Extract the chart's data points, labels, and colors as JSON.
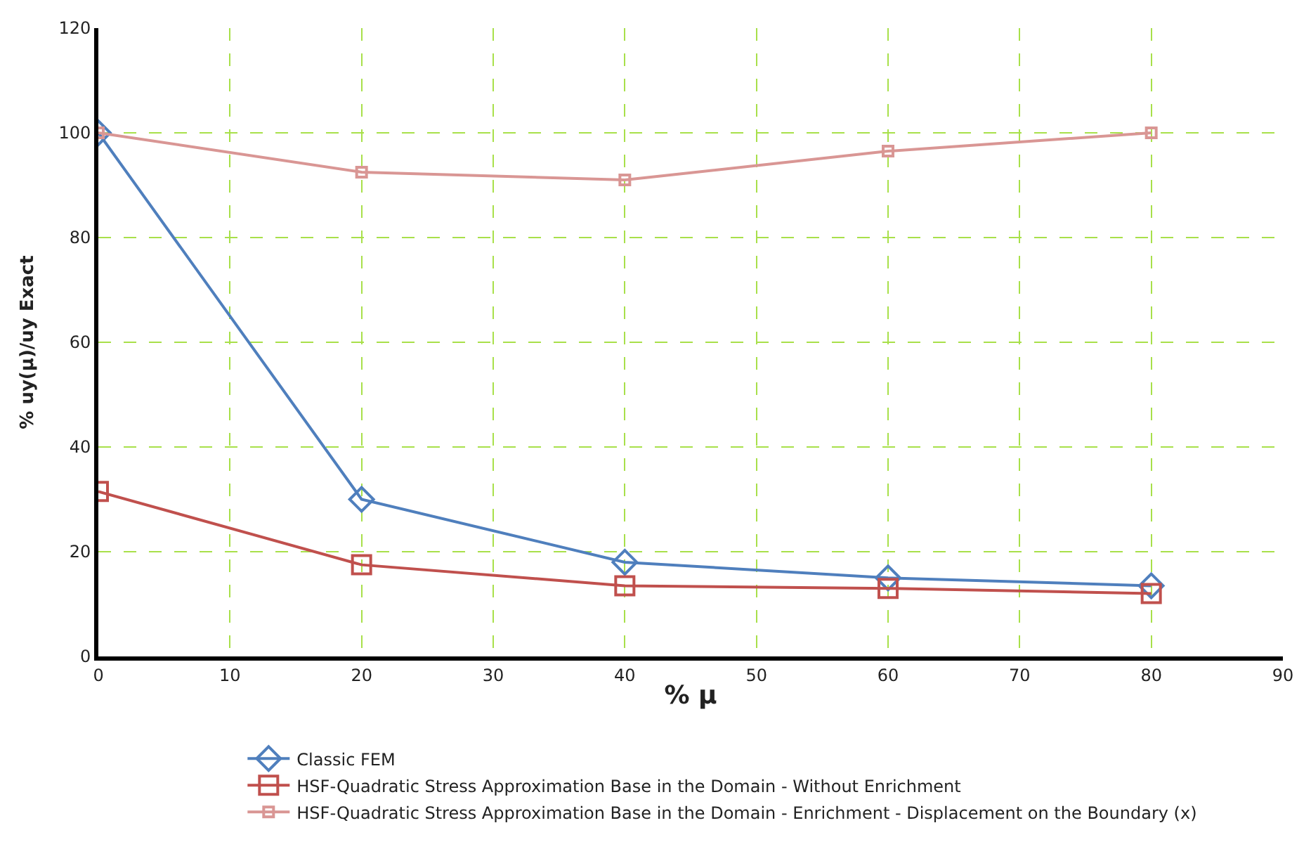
{
  "chart_data": {
    "type": "line",
    "xlabel": "% μ",
    "ylabel": "% uy(μ)/uy Exact",
    "x": [
      0,
      20,
      40,
      60,
      80
    ],
    "series": [
      {
        "name": "Classic FEM",
        "color": "#4f7fbd",
        "marker": "diamond",
        "values": [
          100,
          30,
          18,
          15,
          13.5
        ]
      },
      {
        "name": "HSF-Quadratic Stress Approximation Base in the Domain - Without Enrichment",
        "color": "#c0504d",
        "marker": "square",
        "values": [
          31.5,
          17.5,
          13.5,
          13,
          12
        ]
      },
      {
        "name": "HSF-Quadratic Stress Approximation Base in the Domain - Enrichment - Displacement on the Boundary (x)",
        "color": "#d99694",
        "marker": "square",
        "values": [
          100,
          92.5,
          91,
          96.5,
          100
        ]
      }
    ],
    "xlim": [
      0,
      90
    ],
    "xticks": [
      0,
      10,
      20,
      30,
      40,
      50,
      60,
      70,
      80,
      90
    ],
    "ylim": [
      0,
      120
    ],
    "yticks": [
      0,
      20,
      40,
      60,
      80,
      100,
      120
    ],
    "grid": true,
    "legend": "bottom",
    "line_style": "solid"
  }
}
